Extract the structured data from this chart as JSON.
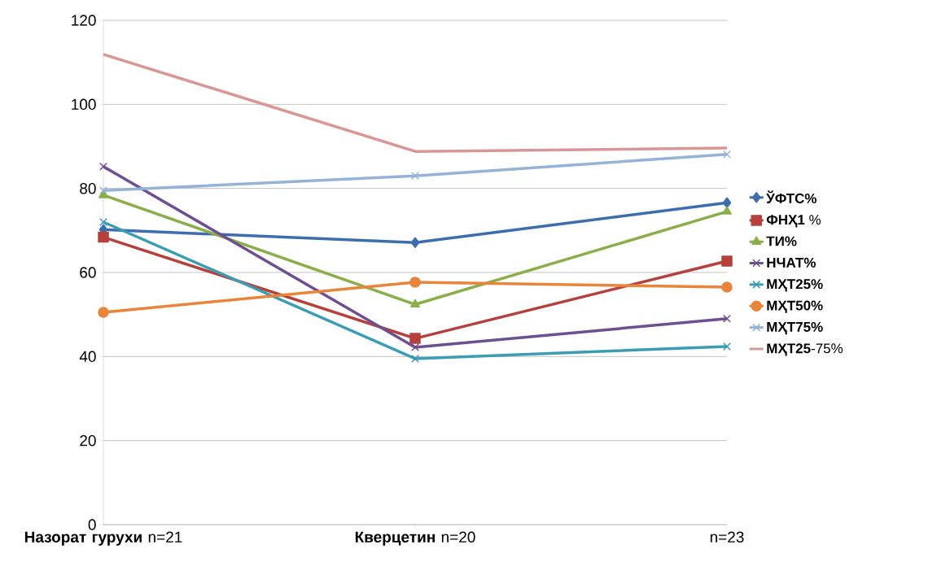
{
  "chart_data": {
    "type": "line",
    "categories": [
      "**Назорат гурухи** n=21",
      "**Кверцетин** n=20",
      "n=23"
    ],
    "series": [
      {
        "name": "**ЎФТС%**",
        "color": "#3c6eaf",
        "marker": "diamond",
        "values": [
          70.2,
          67.1,
          76.6
        ]
      },
      {
        "name": "**ФНҲ1** %",
        "color": "#b5403c",
        "marker": "square",
        "values": [
          68.4,
          44.3,
          62.7
        ]
      },
      {
        "name": "**ТИ%**",
        "color": "#8aae4a",
        "marker": "triangle",
        "values": [
          78.4,
          52.4,
          74.5
        ]
      },
      {
        "name": "**НЧАТ%**",
        "color": "#6d4f92",
        "marker": "cross",
        "values": [
          85.2,
          42.2,
          49.0
        ]
      },
      {
        "name": "**МҲТ25%**",
        "color": "#3a9db5",
        "marker": "cross",
        "values": [
          72.0,
          39.5,
          42.4
        ]
      },
      {
        "name": "**МҲТ50%**",
        "color": "#e8853a",
        "marker": "circle",
        "values": [
          50.5,
          57.7,
          56.5
        ]
      },
      {
        "name": "**МҲТ75%**",
        "color": "#95b3d7",
        "marker": "cross",
        "values": [
          79.5,
          83.0,
          88.1
        ]
      },
      {
        "name": "**МҲТ25**-75%",
        "color": "#d99694",
        "marker": "none",
        "values": [
          111.9,
          88.8,
          89.6
        ]
      }
    ],
    "ylim": [
      0,
      120
    ],
    "yticks": [
      0,
      20,
      40,
      60,
      80,
      100,
      120
    ],
    "grid": "y",
    "legend": "right"
  }
}
